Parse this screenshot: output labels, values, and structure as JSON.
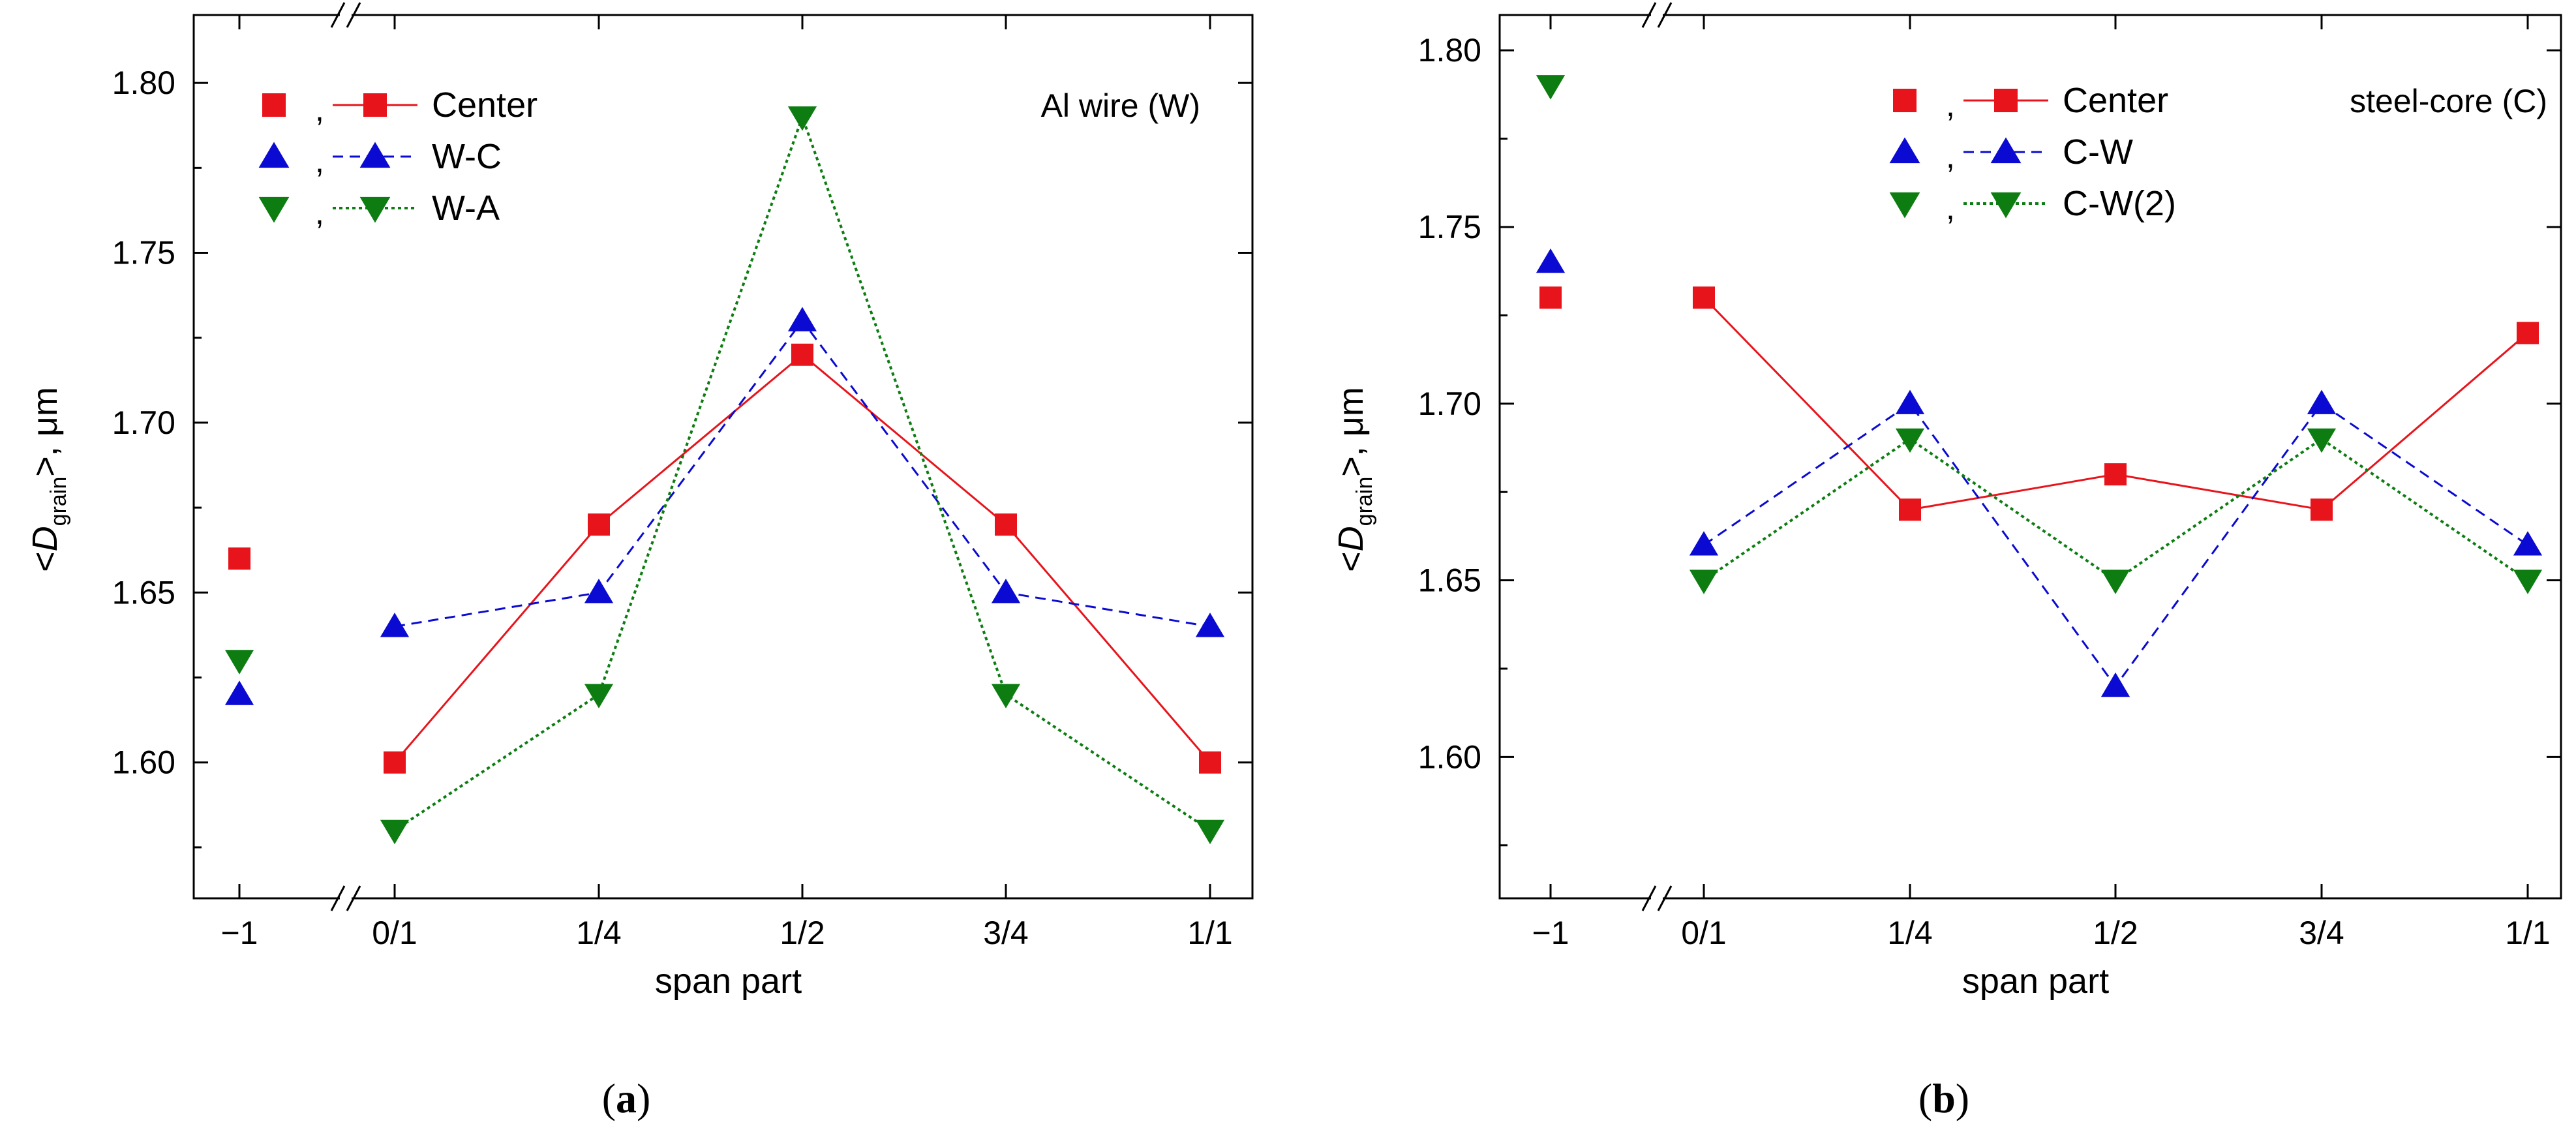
{
  "figure": {
    "axis_break_marker": "//"
  },
  "chart_data": [
    {
      "type": "scatter",
      "panel_label": "a",
      "annotation": "Al wire (W)",
      "xlabel": "span part",
      "ylabel_prefix": "<",
      "ylabel_var": "D",
      "ylabel_sub": "grain",
      "ylabel_suffix": ">, μm",
      "x_ticks": [
        "−1",
        "0/1",
        "1/4",
        "1/2",
        "3/4",
        "1/1"
      ],
      "x_positions": [
        -1,
        0,
        1,
        2,
        3,
        4
      ],
      "y_ticks": [
        "1.60",
        "1.65",
        "1.70",
        "1.75",
        "1.80"
      ],
      "y_tick_values": [
        1.6,
        1.65,
        1.7,
        1.75,
        1.8
      ],
      "ylim": [
        1.56,
        1.82
      ],
      "legend_position": "top-left",
      "legend_separator": ",",
      "series": [
        {
          "name": "Center",
          "marker": "square",
          "color": "#e8141c",
          "line_style": "solid",
          "reference_value": 1.66,
          "values": [
            1.6,
            1.67,
            1.72,
            1.67,
            1.6
          ]
        },
        {
          "name": "W-C",
          "marker": "triangle-up",
          "color": "#0a0ad2",
          "line_style": "dashed",
          "reference_value": 1.62,
          "values": [
            1.64,
            1.65,
            1.73,
            1.65,
            1.64
          ]
        },
        {
          "name": "W-A",
          "marker": "triangle-down",
          "color": "#0d7d12",
          "line_style": "dotted",
          "reference_value": 1.63,
          "values": [
            1.58,
            1.62,
            1.79,
            1.62,
            1.58
          ]
        }
      ]
    },
    {
      "type": "scatter",
      "panel_label": "b",
      "annotation": "steel-core (C)",
      "xlabel": "span part",
      "ylabel_prefix": "<",
      "ylabel_var": "D",
      "ylabel_sub": "grain",
      "ylabel_suffix": ">, μm",
      "x_ticks": [
        "−1",
        "0/1",
        "1/4",
        "1/2",
        "3/4",
        "1/1"
      ],
      "x_positions": [
        -1,
        0,
        1,
        2,
        3,
        4
      ],
      "y_ticks": [
        "1.60",
        "1.65",
        "1.70",
        "1.75",
        "1.80"
      ],
      "y_tick_values": [
        1.6,
        1.65,
        1.7,
        1.75,
        1.8
      ],
      "ylim": [
        1.56,
        1.81
      ],
      "legend_position": "top-center",
      "legend_separator": ",",
      "series": [
        {
          "name": "Center",
          "marker": "square",
          "color": "#e8141c",
          "line_style": "solid",
          "reference_value": 1.73,
          "values": [
            1.73,
            1.67,
            1.68,
            1.67,
            1.72
          ]
        },
        {
          "name": "C-W",
          "marker": "triangle-up",
          "color": "#0a0ad2",
          "line_style": "dashed",
          "reference_value": 1.74,
          "values": [
            1.66,
            1.7,
            1.62,
            1.7,
            1.66
          ]
        },
        {
          "name": "C-W(2)",
          "marker": "triangle-down",
          "color": "#0d7d12",
          "line_style": "dotted",
          "reference_value": 1.79,
          "values": [
            1.65,
            1.69,
            1.65,
            1.69,
            1.65
          ]
        }
      ]
    }
  ]
}
